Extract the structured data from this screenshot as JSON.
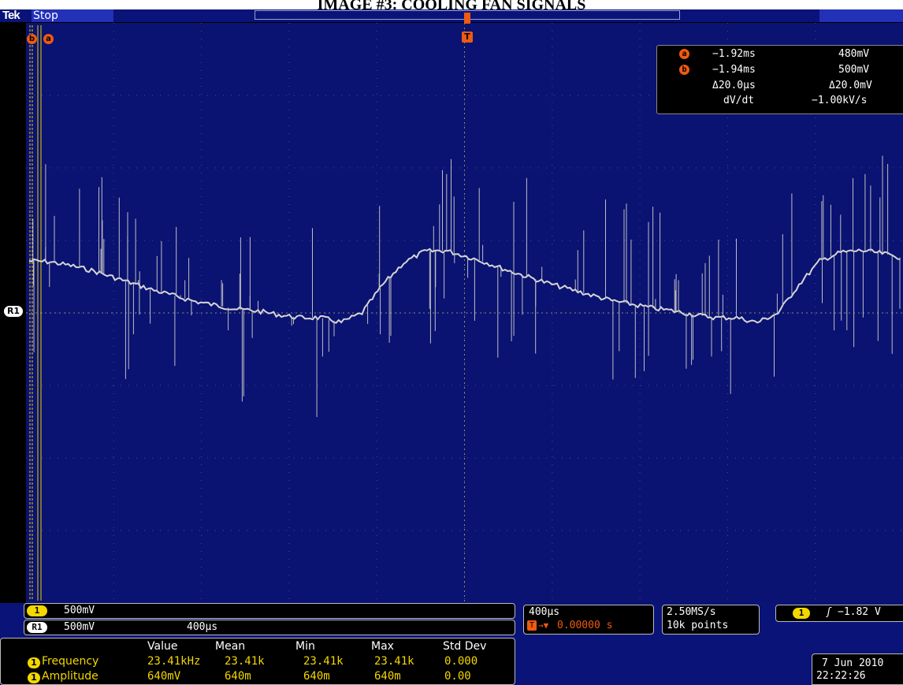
{
  "page_title": "IMAGE #3: COOLING FAN SIGNALS",
  "status": {
    "brand": "Tek",
    "state": "Stop"
  },
  "markers": {
    "b": "b",
    "a": "a",
    "trigger": "T",
    "ref": "R1"
  },
  "cursor_readout": {
    "a_time": "−1.92ms",
    "a_value": "480mV",
    "b_time": "−1.94ms",
    "b_value": "500mV",
    "delta_time": "Δ20.0μs",
    "delta_value": "Δ20.0mV",
    "slope_label": "dV/dt",
    "slope_value": "−1.00kV/s"
  },
  "channel1": {
    "label": "1",
    "scale": "500mV"
  },
  "reference": {
    "label": "R1",
    "scale": "500mV",
    "time": "400μs"
  },
  "timebase": {
    "scale": "400μs",
    "position": "0.00000 s",
    "trigger_icon": "T"
  },
  "acquisition": {
    "rate": "2.50MS/s",
    "points": "10k points"
  },
  "trigger": {
    "channel": "1",
    "slope": "rising-edge-icon",
    "slope_glyph": "ʃ",
    "level": "−1.82 V"
  },
  "datetime": {
    "date": "7 Jun 2010",
    "time": "22:22:26"
  },
  "measurements": {
    "headers": [
      "Value",
      "Mean",
      "Min",
      "Max",
      "Std Dev"
    ],
    "rows": [
      {
        "channel": "1",
        "name": "Frequency",
        "value": "23.41kHz",
        "mean": "23.41k",
        "min": "23.41k",
        "max": "23.41k",
        "std": "0.000"
      },
      {
        "channel": "1",
        "name": "Amplitude",
        "value": "640mV",
        "mean": "640m",
        "min": "640m",
        "max": "640m",
        "std": "0.00"
      }
    ]
  },
  "colors": {
    "screen": "#0a1272",
    "waveform": "#d6d6d6",
    "cursor": "#ef5a10",
    "channel1": "#f3d700",
    "header": "#0a1378"
  },
  "chart_data": {
    "type": "line",
    "grid": true,
    "series": [
      {
        "y": [
          0.55,
          0.54,
          0.5,
          0.45,
          0.38,
          0.31,
          0.24,
          0.18,
          0.12,
          0.08,
          0.04,
          0.02,
          -0.02,
          -0.05,
          -0.05,
          -0.1,
          0.0,
          0.3,
          0.53,
          0.65,
          0.66,
          0.6,
          0.53,
          0.45,
          0.38,
          0.31,
          0.25,
          0.19,
          0.13,
          0.09,
          0.05,
          0.02,
          -0.02,
          -0.05,
          -0.05,
          -0.1,
          0.0,
          0.3,
          0.55,
          0.64,
          0.66,
          0.63,
          0.58
        ]
      }
    ]
  }
}
